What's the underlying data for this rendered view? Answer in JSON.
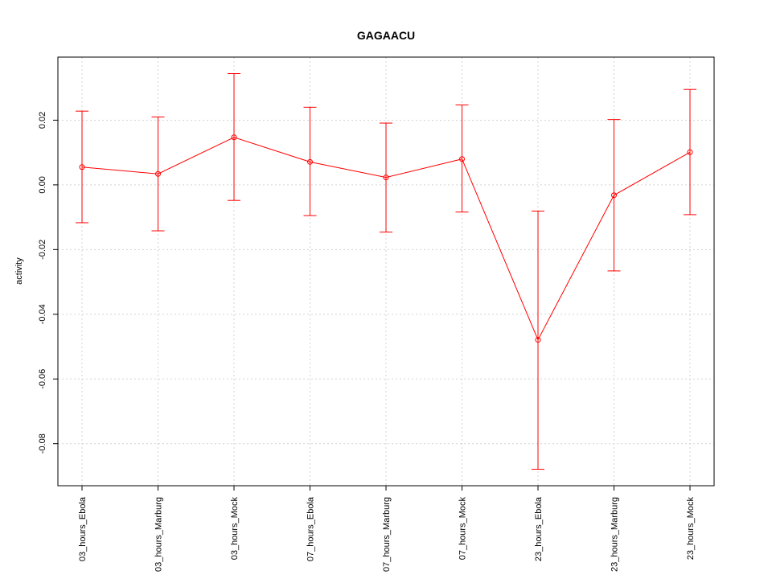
{
  "chart_data": {
    "type": "line",
    "title": "GAGAACU",
    "xlabel": "",
    "ylabel": "activity",
    "categories": [
      "03_hours_Ebola",
      "03_hours_Marburg",
      "03_hours_Mock",
      "07_hours_Ebola",
      "07_hours_Marburg",
      "07_hours_Mock",
      "23_hours_Ebola",
      "23_hours_Marburg",
      "23_hours_Mock"
    ],
    "series": [
      {
        "values": [
          0.0055,
          0.0034,
          0.0147,
          0.0071,
          0.0023,
          0.008,
          -0.0479,
          -0.0032,
          0.0101
        ],
        "upper": [
          0.0228,
          0.021,
          0.0344,
          0.024,
          0.0191,
          0.0247,
          -0.0081,
          0.0202,
          0.0295
        ],
        "lower": [
          -0.0117,
          -0.0142,
          -0.0048,
          -0.0095,
          -0.0146,
          -0.0084,
          -0.0879,
          -0.0266,
          -0.0092
        ],
        "color": "#ff0000"
      }
    ],
    "ylim": [
      -0.093,
      0.0395
    ],
    "yticks": [
      -0.08,
      -0.06,
      -0.04,
      -0.02,
      0.0,
      0.02
    ],
    "ytick_labels": [
      "-0.08",
      "-0.06",
      "-0.04",
      "-0.02",
      "0.00",
      "0.02"
    ],
    "grid": true,
    "grid_color": "#d3d3d3"
  }
}
